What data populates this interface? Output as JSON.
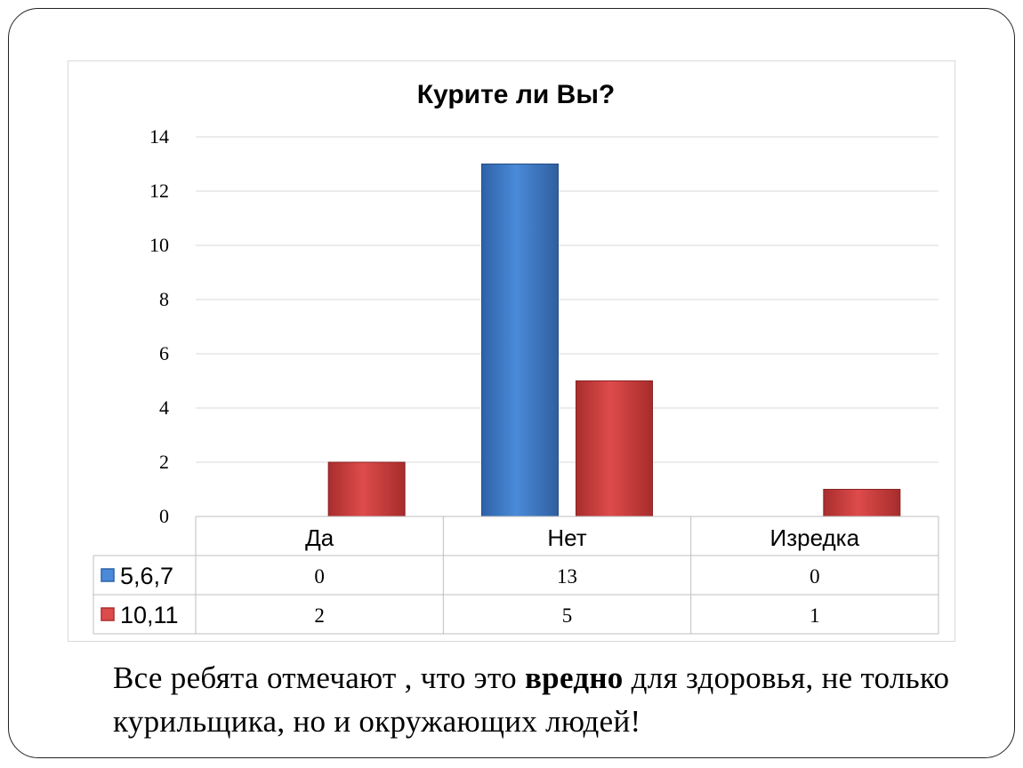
{
  "chart_data": {
    "type": "bar",
    "title": "Курите ли  Вы?",
    "categories": [
      "Да",
      "Нет",
      "Изредка"
    ],
    "series": [
      {
        "name": "5,6,7",
        "values": [
          0,
          13,
          0
        ],
        "color": "#3a75c4"
      },
      {
        "name": "10,11",
        "values": [
          2,
          5,
          1
        ],
        "color": "#c43a3a"
      }
    ],
    "ylim": [
      0,
      14
    ],
    "yticks": [
      0,
      2,
      4,
      6,
      8,
      10,
      12,
      14
    ],
    "grid": true,
    "legend": "data-table"
  },
  "caption": {
    "part1": "Все ребята отмечают , что это ",
    "bold": "вредно",
    "part2": " для здоровья, не только курильщика, но и окружающих людей!"
  }
}
